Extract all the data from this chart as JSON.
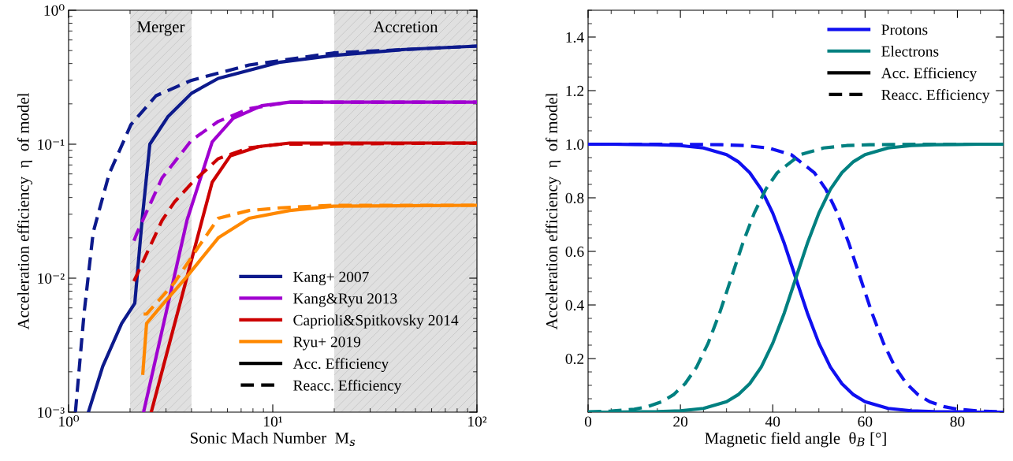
{
  "chart_data": [
    {
      "type": "line",
      "xlabel": "Sonic Mach Number  M$_{s}$",
      "ylabel": "Acceleration efficiency  η  of model",
      "log": "xy",
      "xlim": [
        1,
        100
      ],
      "xticks": [
        {
          "value": 1,
          "label": "10⁰"
        },
        {
          "value": 10,
          "label": "10¹"
        },
        {
          "value": 100,
          "label": "10²"
        }
      ],
      "ylim": [
        0.001,
        1
      ],
      "yticks": [
        {
          "value": 0.001,
          "label": "10⁻³"
        },
        {
          "value": 0.01,
          "label": "10⁻²"
        },
        {
          "value": 0.1,
          "label": "10⁻¹"
        },
        {
          "value": 1,
          "label": "10⁰"
        }
      ],
      "legend": "bottom right",
      "annotations": [
        "Acc. Efficiency",
        "Reacc. Efficiency"
      ],
      "bands": [
        {
          "axis": "x",
          "from": 2,
          "to": 4,
          "label": "Merger",
          "color": "#e0e0e0"
        },
        {
          "axis": "x",
          "from": 20,
          "to": 100,
          "label": "Accretion",
          "color": "#e0e0e0"
        }
      ],
      "series": [
        {
          "name": "Kang+ 2007",
          "color": "#0d1a8c",
          "line_style": "solid",
          "x": [
            1.25,
            1.47,
            1.82,
            2.11,
            2.29,
            2.5,
            3.06,
            4,
            5.41,
            10.9,
            19.8,
            44.5,
            100
          ],
          "values": [
            0.001,
            0.0022,
            0.0046,
            0.0065,
            0.027,
            0.1,
            0.16,
            0.24,
            0.31,
            0.41,
            0.46,
            0.51,
            0.54
          ]
        },
        {
          "color": "#0d1a8c",
          "line_style": "dashed",
          "x": [
            1.08,
            1.19,
            1.32,
            1.58,
            2.02,
            2.68,
            4,
            7.66,
            19.8,
            100
          ],
          "values": [
            0.001,
            0.0054,
            0.022,
            0.06,
            0.14,
            0.23,
            0.3,
            0.39,
            0.48,
            0.54
          ]
        },
        {
          "name": "Kang&Ryu 2013",
          "color": "#a000d0",
          "line_style": "solid",
          "x": [
            2.33,
            3.8,
            5.05,
            6.4,
            8.83,
            12.1,
            100
          ],
          "values": [
            0.001,
            0.027,
            0.104,
            0.156,
            0.194,
            0.206,
            0.206
          ]
        },
        {
          "color": "#a000d0",
          "line_style": "dashed",
          "x": [
            2.09,
            2.17,
            2.87,
            4,
            5.41,
            7.66,
            10.2,
            12.1,
            100
          ],
          "values": [
            0.019,
            0.022,
            0.056,
            0.107,
            0.148,
            0.184,
            0.198,
            0.206,
            0.206
          ]
        },
        {
          "name": "Caprioli&Spitkovsky 2014",
          "color": "#cc0000",
          "line_style": "solid",
          "x": [
            2.54,
            4.53,
            5.05,
            6.2,
            8.53,
            12.1,
            100
          ],
          "values": [
            0.001,
            0.028,
            0.052,
            0.082,
            0.096,
            0.102,
            0.102
          ]
        },
        {
          "color": "#cc0000",
          "line_style": "dashed",
          "x": [
            2.09,
            2.87,
            3.3,
            4,
            5.41,
            7.66,
            10.9,
            100
          ],
          "values": [
            0.0095,
            0.027,
            0.037,
            0.051,
            0.078,
            0.094,
            0.1,
            0.102
          ]
        },
        {
          "name": "Ryu+ 2019",
          "color": "#ff8800",
          "line_style": "solid",
          "x": [
            2.31,
            2.41,
            2.87,
            3.8,
            5.41,
            7.66,
            12.1,
            19.8,
            100
          ],
          "values": [
            0.00195,
            0.0046,
            0.0063,
            0.0103,
            0.02,
            0.028,
            0.032,
            0.0345,
            0.035
          ]
        },
        {
          "color": "#ff8800",
          "line_style": "dashed",
          "x": [
            2.33,
            2.41,
            3.29,
            4.37,
            5.41,
            7.66,
            10.9,
            19.8,
            100
          ],
          "values": [
            0.0054,
            0.0054,
            0.0092,
            0.0175,
            0.028,
            0.032,
            0.0335,
            0.035,
            0.035
          ]
        }
      ]
    },
    {
      "type": "line",
      "xlabel": "Magnetic field angle  θ$_{B}$ [°]",
      "ylabel": "Acceleration efficiency  η  of model",
      "xlim": [
        0,
        90
      ],
      "xticks": [
        0,
        20,
        40,
        60,
        80
      ],
      "ylim": [
        0,
        1.5
      ],
      "yticks": [
        0.2,
        0.4,
        0.6,
        0.8,
        {
          "value": 1,
          "label": "1.0"
        },
        1.2,
        1.4
      ],
      "legend": "top right",
      "annotations": [
        "Acc. Efficiency",
        "Reacc. Efficiency"
      ],
      "series": [
        {
          "name": "Protons",
          "color": "#1010f0",
          "line_style": "solid",
          "x": [
            0,
            5,
            10,
            15,
            20,
            25,
            30,
            32.5,
            35,
            37.5,
            40,
            42.5,
            45,
            47.5,
            50,
            52.5,
            55,
            57.5,
            60,
            65,
            70,
            75,
            80,
            85,
            90
          ],
          "values": [
            1.0,
            1.0,
            0.999,
            0.998,
            0.995,
            0.986,
            0.961,
            0.935,
            0.894,
            0.832,
            0.743,
            0.63,
            0.5,
            0.37,
            0.257,
            0.168,
            0.106,
            0.065,
            0.039,
            0.014,
            0.005,
            0.002,
            0.001,
            0.0,
            0.0
          ]
        },
        {
          "name": "Electrons",
          "color": "#008080",
          "line_style": "solid",
          "x": [
            0,
            5,
            10,
            15,
            20,
            25,
            30,
            32.5,
            35,
            37.5,
            40,
            42.5,
            45,
            47.5,
            50,
            52.5,
            55,
            57.5,
            60,
            65,
            70,
            75,
            80,
            85,
            90
          ],
          "values": [
            0.0,
            0.0,
            0.001,
            0.002,
            0.005,
            0.014,
            0.039,
            0.065,
            0.106,
            0.168,
            0.257,
            0.37,
            0.5,
            0.63,
            0.743,
            0.832,
            0.894,
            0.935,
            0.961,
            0.986,
            0.995,
            0.998,
            0.999,
            1.0,
            1.0
          ]
        },
        {
          "color": "#1010f0",
          "line_style": "dashed",
          "x": [
            0,
            14,
            24,
            29,
            34,
            39,
            44,
            49,
            51.5,
            54,
            56.5,
            59,
            61.5,
            64,
            66.5,
            69,
            71.5,
            74,
            77,
            80,
            85,
            90
          ],
          "values": [
            1.0,
            1.0,
            0.999,
            0.998,
            0.995,
            0.986,
            0.961,
            0.894,
            0.832,
            0.743,
            0.63,
            0.5,
            0.37,
            0.257,
            0.168,
            0.106,
            0.065,
            0.039,
            0.021,
            0.011,
            0.004,
            0.001
          ]
        },
        {
          "color": "#008080",
          "line_style": "dashed",
          "x": [
            0,
            5,
            10,
            13,
            16,
            18.5,
            21,
            23.5,
            26,
            28.5,
            31,
            33.5,
            36,
            38.5,
            41,
            46,
            51,
            56,
            61,
            66,
            76,
            90
          ],
          "values": [
            0.001,
            0.004,
            0.011,
            0.021,
            0.039,
            0.065,
            0.106,
            0.168,
            0.257,
            0.37,
            0.5,
            0.63,
            0.743,
            0.832,
            0.894,
            0.961,
            0.986,
            0.995,
            0.998,
            0.999,
            1.0,
            1.0
          ]
        }
      ]
    }
  ]
}
